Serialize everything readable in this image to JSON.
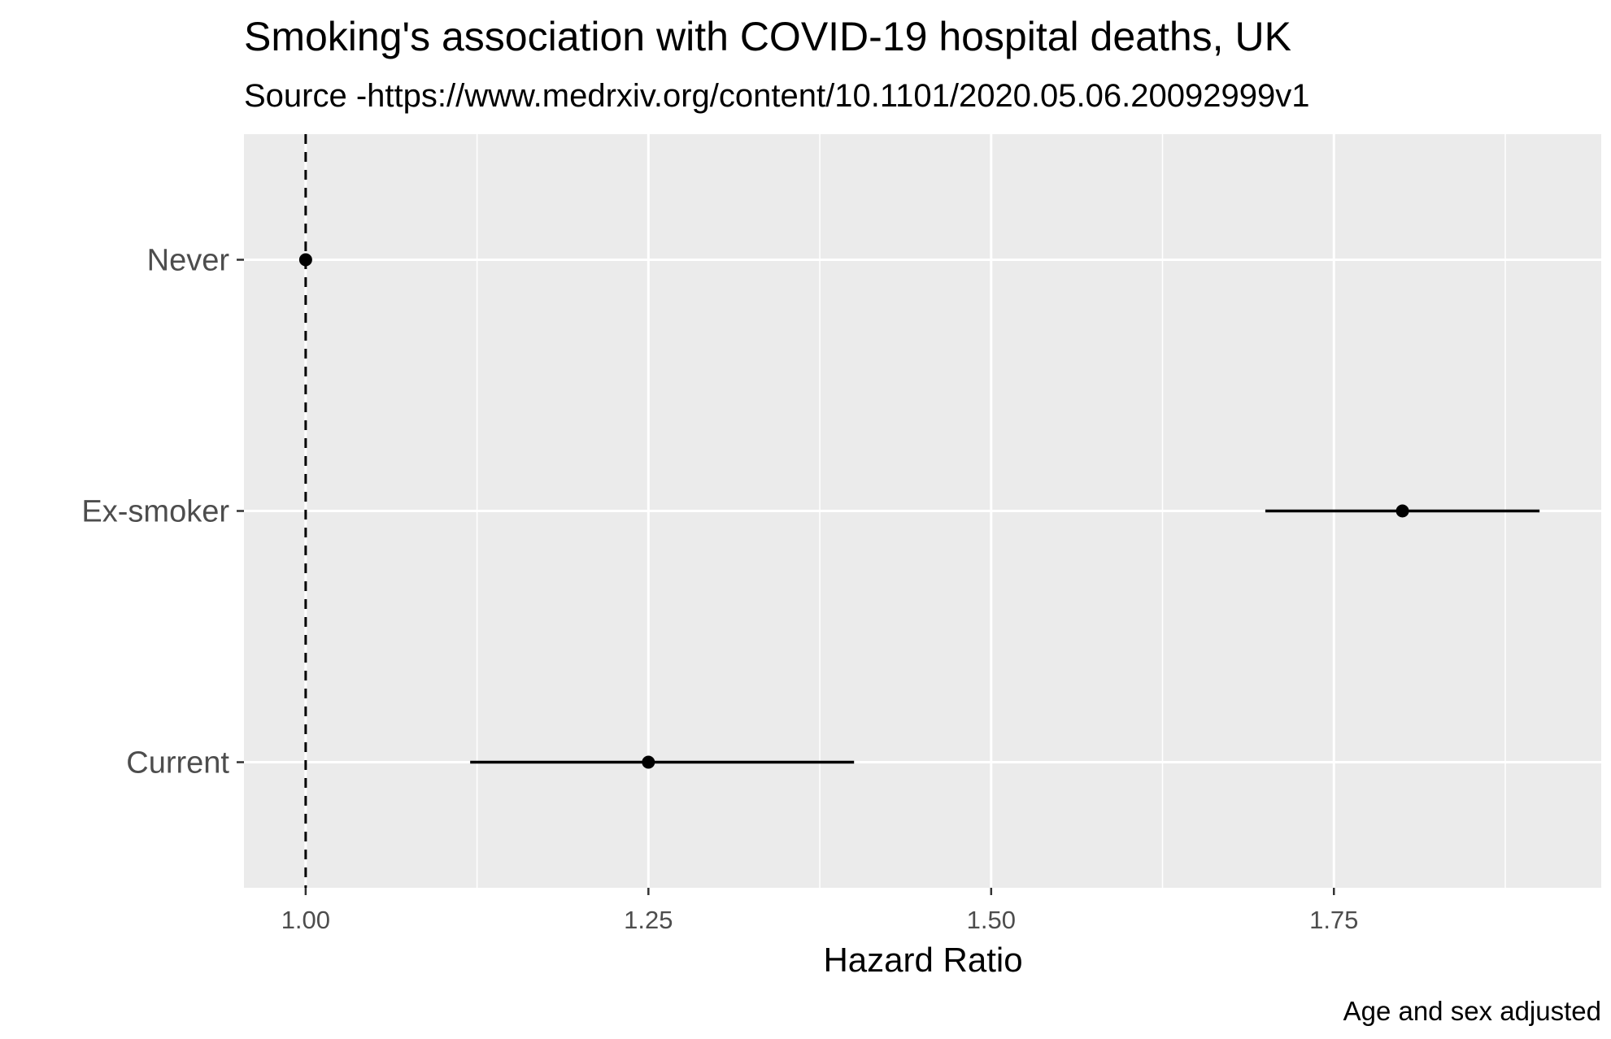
{
  "chart_data": {
    "type": "scatter",
    "subtype": "forest-plot",
    "title": "Smoking's association with COVID-19 hospital deaths, UK",
    "subtitle": "Source -https://www.medrxiv.org/content/10.1101/2020.05.06.20092999v1",
    "xlabel": "Hazard Ratio",
    "ylabel": "",
    "caption": "Age and sex adjusted",
    "xlim": [
      0.955,
      1.945
    ],
    "x_ticks": [
      1.0,
      1.25,
      1.5,
      1.75
    ],
    "x_tick_labels": [
      "1.00",
      "1.25",
      "1.50",
      "1.75"
    ],
    "x_minor_ticks": [
      1.125,
      1.375,
      1.625,
      1.875
    ],
    "categories": [
      "Never",
      "Ex-smoker",
      "Current"
    ],
    "points": [
      {
        "category": "Never",
        "hr": 1.0,
        "lower": 1.0,
        "upper": 1.0
      },
      {
        "category": "Ex-smoker",
        "hr": 1.8,
        "lower": 1.7,
        "upper": 1.9
      },
      {
        "category": "Current",
        "hr": 1.25,
        "lower": 1.12,
        "upper": 1.4
      }
    ],
    "reference_line": {
      "x": 1.0,
      "style": "dashed"
    },
    "grid": true,
    "legend": "none",
    "colors": {
      "panel": "#ebebeb",
      "grid": "#ffffff",
      "marks": "#000000",
      "tick_text": "#4d4d4d"
    }
  }
}
